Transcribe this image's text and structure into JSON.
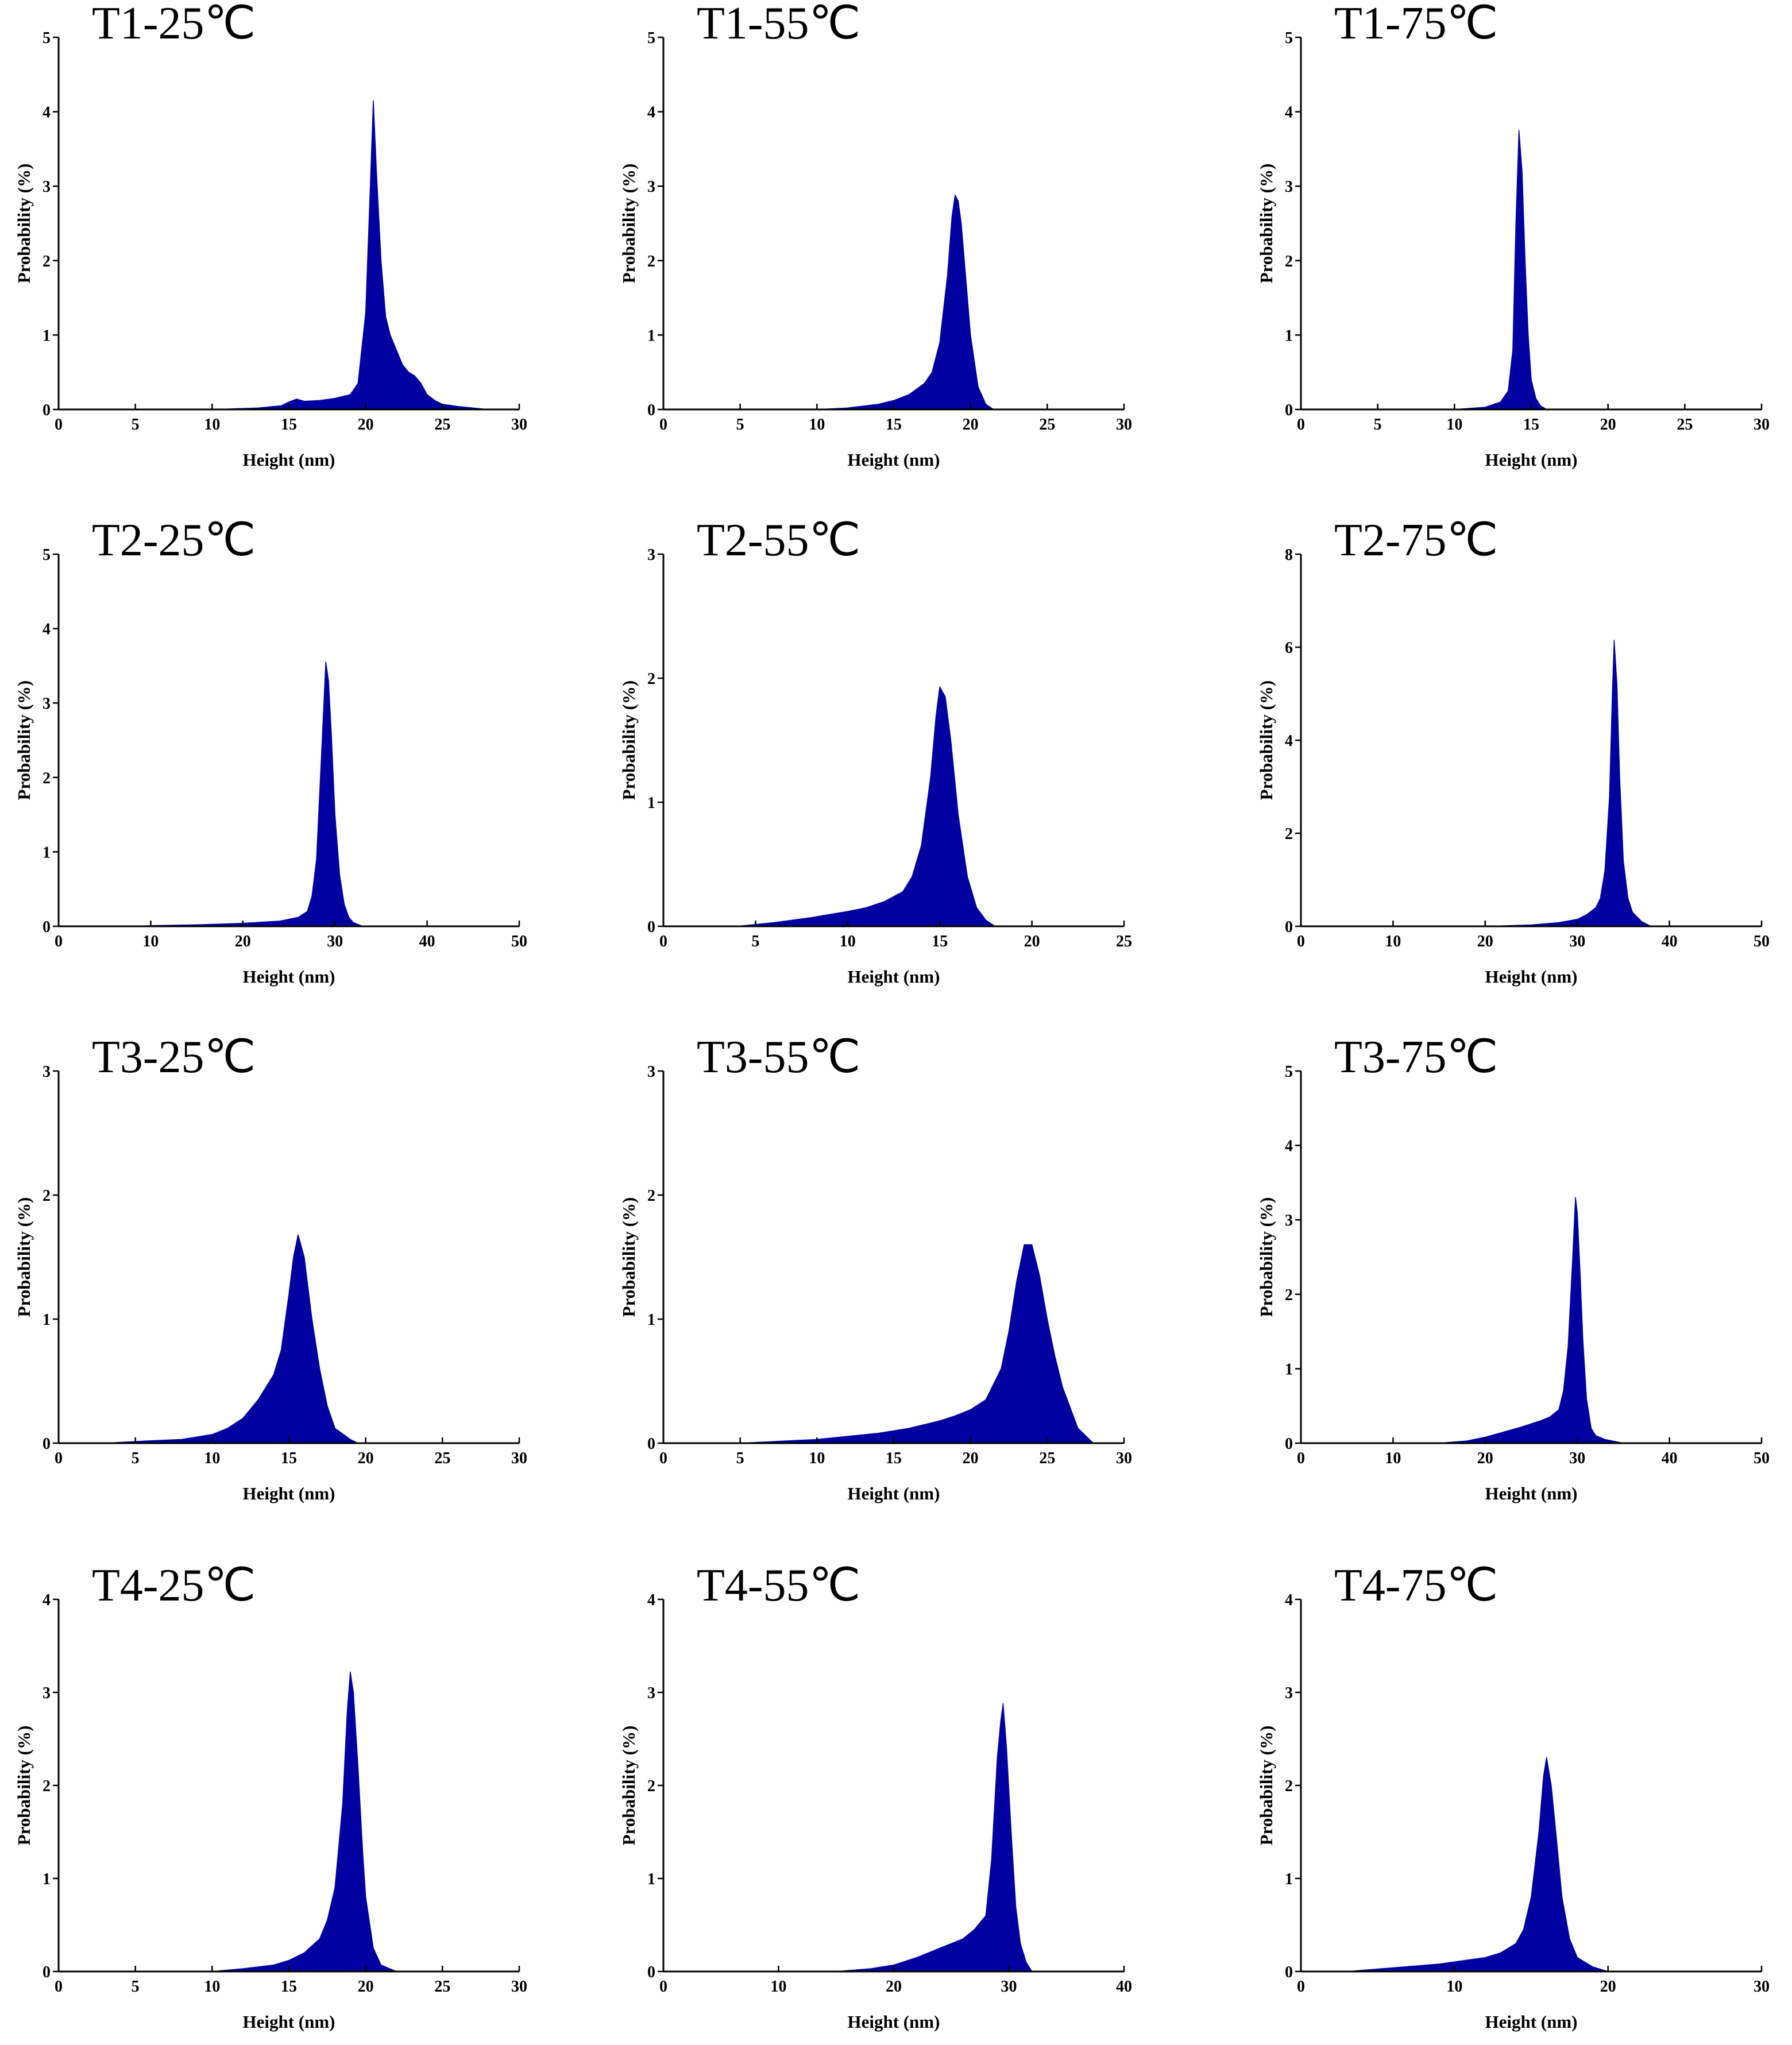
{
  "chart_data": [
    {
      "type": "area",
      "title": "T1-25℃",
      "xlabel": "Height (nm)",
      "ylabel": "Probability (%)",
      "xlim": [
        0,
        30
      ],
      "ylim": [
        0,
        5
      ],
      "xticks": [
        0,
        5,
        10,
        15,
        20,
        25,
        30
      ],
      "yticks": [
        0,
        1,
        2,
        3,
        4,
        5
      ],
      "color": "#0000A0",
      "grid": false,
      "legend": "none",
      "x": [
        0,
        10,
        13,
        14.5,
        15,
        15.5,
        16,
        17,
        18,
        19,
        19.5,
        20,
        20.3,
        20.5,
        20.7,
        21,
        21.3,
        21.6,
        22,
        22.4,
        22.8,
        23.2,
        23.6,
        24,
        24.5,
        25,
        26,
        27,
        28,
        30
      ],
      "y": [
        0,
        0,
        0.02,
        0.05,
        0.1,
        0.14,
        0.11,
        0.12,
        0.15,
        0.2,
        0.35,
        1.3,
        3.0,
        4.15,
        3.2,
        2.0,
        1.25,
        1.0,
        0.8,
        0.6,
        0.5,
        0.45,
        0.35,
        0.2,
        0.12,
        0.07,
        0.04,
        0.02,
        0,
        0
      ]
    },
    {
      "type": "area",
      "title": "T1-55℃",
      "xlabel": "Height (nm)",
      "ylabel": "Probability (%)",
      "xlim": [
        0,
        30
      ],
      "ylim": [
        0,
        5
      ],
      "xticks": [
        0,
        5,
        10,
        15,
        20,
        25,
        30
      ],
      "yticks": [
        0,
        1,
        2,
        3,
        4,
        5
      ],
      "color": "#0000A0",
      "grid": false,
      "legend": "none",
      "x": [
        0,
        10,
        12,
        14,
        15,
        16,
        17,
        17.5,
        18,
        18.5,
        18.8,
        19,
        19.2,
        19.4,
        19.6,
        20,
        20.5,
        21,
        21.5,
        30
      ],
      "y": [
        0,
        0,
        0.02,
        0.07,
        0.12,
        0.2,
        0.35,
        0.5,
        0.9,
        1.8,
        2.6,
        2.88,
        2.8,
        2.5,
        2.0,
        1.0,
        0.3,
        0.07,
        0,
        0
      ]
    },
    {
      "type": "area",
      "title": "T1-75℃",
      "xlabel": "Height (nm)",
      "ylabel": "Probability (%)",
      "xlim": [
        0,
        30
      ],
      "ylim": [
        0,
        5
      ],
      "xticks": [
        0,
        5,
        10,
        15,
        20,
        25,
        30
      ],
      "yticks": [
        0,
        1,
        2,
        3,
        4,
        5
      ],
      "color": "#0000A0",
      "grid": false,
      "legend": "none",
      "x": [
        0,
        10,
        12,
        13,
        13.5,
        13.8,
        14,
        14.2,
        14.4,
        14.6,
        14.8,
        15,
        15.3,
        15.6,
        16,
        30
      ],
      "y": [
        0,
        0,
        0.03,
        0.1,
        0.25,
        0.8,
        2.5,
        3.75,
        3.2,
        2.0,
        1.0,
        0.4,
        0.15,
        0.05,
        0,
        0
      ]
    },
    {
      "type": "area",
      "title": "T2-25℃",
      "xlabel": "Height (nm)",
      "ylabel": "Probability (%)",
      "xlim": [
        0,
        50
      ],
      "ylim": [
        0,
        5
      ],
      "xticks": [
        0,
        10,
        20,
        30,
        40,
        50
      ],
      "yticks": [
        0,
        1,
        2,
        3,
        4,
        5
      ],
      "color": "#0000A0",
      "grid": false,
      "legend": "none",
      "x": [
        0,
        8,
        10,
        15,
        20,
        24,
        26,
        27,
        27.5,
        28,
        28.5,
        29,
        29.3,
        29.6,
        30,
        30.5,
        31,
        31.5,
        32,
        33,
        50
      ],
      "y": [
        0,
        0,
        0.01,
        0.02,
        0.04,
        0.07,
        0.12,
        0.2,
        0.4,
        0.9,
        2.2,
        3.55,
        3.3,
        2.6,
        1.5,
        0.7,
        0.3,
        0.12,
        0.05,
        0,
        0
      ]
    },
    {
      "type": "area",
      "title": "T2-55℃",
      "xlabel": "Height (nm)",
      "ylabel": "Probability (%)",
      "xlim": [
        0,
        25
      ],
      "ylim": [
        0,
        3
      ],
      "xticks": [
        0,
        5,
        10,
        15,
        20,
        25
      ],
      "yticks": [
        0,
        1,
        2,
        3
      ],
      "color": "#0000A0",
      "grid": false,
      "legend": "none",
      "x": [
        0,
        4,
        6,
        8,
        10,
        11,
        12,
        13,
        13.5,
        14,
        14.5,
        14.8,
        15,
        15.3,
        15.6,
        16,
        16.5,
        17,
        17.5,
        18,
        25
      ],
      "y": [
        0,
        0,
        0.03,
        0.07,
        0.12,
        0.15,
        0.2,
        0.28,
        0.4,
        0.65,
        1.2,
        1.7,
        1.93,
        1.85,
        1.5,
        0.9,
        0.4,
        0.15,
        0.05,
        0,
        0
      ]
    },
    {
      "type": "area",
      "title": "T2-75℃",
      "xlabel": "Height (nm)",
      "ylabel": "Probability (%)",
      "xlim": [
        0,
        50
      ],
      "ylim": [
        0,
        8
      ],
      "xticks": [
        0,
        10,
        20,
        30,
        40,
        50
      ],
      "yticks": [
        0,
        2,
        4,
        6,
        8
      ],
      "color": "#0000A0",
      "grid": false,
      "legend": "none",
      "x": [
        0,
        20,
        25,
        28,
        30,
        31,
        32,
        32.5,
        33,
        33.5,
        33.8,
        34,
        34.3,
        34.6,
        35,
        35.5,
        36,
        37,
        38,
        50
      ],
      "y": [
        0,
        0,
        0.03,
        0.08,
        0.15,
        0.25,
        0.4,
        0.6,
        1.2,
        2.8,
        5.0,
        6.15,
        5.2,
        3.2,
        1.4,
        0.6,
        0.3,
        0.1,
        0,
        0
      ]
    },
    {
      "type": "area",
      "title": "T3-25℃",
      "xlabel": "Height (nm)",
      "ylabel": "Probability (%)",
      "xlim": [
        0,
        30
      ],
      "ylim": [
        0,
        3
      ],
      "xticks": [
        0,
        5,
        10,
        15,
        20,
        25,
        30
      ],
      "yticks": [
        0,
        1,
        2,
        3
      ],
      "color": "#0000A0",
      "grid": false,
      "legend": "none",
      "x": [
        0,
        3,
        6,
        8,
        10,
        11,
        12,
        13,
        13.5,
        14,
        14.5,
        15,
        15.3,
        15.6,
        16,
        16.5,
        17,
        17.5,
        18,
        19,
        19.5,
        30
      ],
      "y": [
        0,
        0,
        0.02,
        0.03,
        0.07,
        0.12,
        0.2,
        0.35,
        0.45,
        0.55,
        0.75,
        1.2,
        1.5,
        1.68,
        1.5,
        1.0,
        0.6,
        0.3,
        0.12,
        0.03,
        0,
        0
      ]
    },
    {
      "type": "area",
      "title": "T3-55℃",
      "xlabel": "Height (nm)",
      "ylabel": "Probability (%)",
      "xlim": [
        0,
        30
      ],
      "ylim": [
        0,
        3
      ],
      "xticks": [
        0,
        5,
        10,
        15,
        20,
        25,
        30
      ],
      "yticks": [
        0,
        1,
        2,
        3
      ],
      "color": "#0000A0",
      "grid": false,
      "legend": "none",
      "x": [
        0,
        5,
        10,
        14,
        16,
        18,
        19,
        20,
        21,
        22,
        22.5,
        23,
        23.5,
        24,
        24.5,
        25,
        25.5,
        26,
        27,
        28,
        30
      ],
      "y": [
        0,
        0,
        0.03,
        0.08,
        0.12,
        0.18,
        0.22,
        0.27,
        0.35,
        0.6,
        0.9,
        1.3,
        1.6,
        1.6,
        1.35,
        1.0,
        0.7,
        0.45,
        0.12,
        0,
        0
      ]
    },
    {
      "type": "area",
      "title": "T3-75℃",
      "xlabel": "Height (nm)",
      "ylabel": "Probability (%)",
      "xlim": [
        0,
        50
      ],
      "ylim": [
        0,
        5
      ],
      "xticks": [
        0,
        10,
        20,
        30,
        40,
        50
      ],
      "yticks": [
        0,
        1,
        2,
        3,
        4,
        5
      ],
      "color": "#0000A0",
      "grid": false,
      "legend": "none",
      "x": [
        0,
        15,
        18,
        20,
        22,
        24,
        26,
        27,
        28,
        28.5,
        29,
        29.5,
        29.8,
        30,
        30.3,
        30.6,
        31,
        31.5,
        32,
        33,
        35,
        50
      ],
      "y": [
        0,
        0,
        0.03,
        0.08,
        0.15,
        0.22,
        0.3,
        0.35,
        0.45,
        0.7,
        1.3,
        2.5,
        3.3,
        3.1,
        2.3,
        1.4,
        0.6,
        0.2,
        0.1,
        0.05,
        0,
        0
      ]
    },
    {
      "type": "area",
      "title": "T4-25℃",
      "xlabel": "Height (nm)",
      "ylabel": "Probability (%)",
      "xlim": [
        0,
        30
      ],
      "ylim": [
        0,
        4
      ],
      "xticks": [
        0,
        5,
        10,
        15,
        20,
        25,
        30
      ],
      "yticks": [
        0,
        1,
        2,
        3,
        4
      ],
      "color": "#0000A0",
      "grid": false,
      "legend": "none",
      "x": [
        0,
        10,
        12,
        14,
        15,
        16,
        17,
        17.5,
        18,
        18.5,
        18.8,
        19,
        19.2,
        19.5,
        19.8,
        20,
        20.5,
        21,
        22,
        30
      ],
      "y": [
        0,
        0,
        0.03,
        0.07,
        0.12,
        0.2,
        0.35,
        0.55,
        0.9,
        1.8,
        2.8,
        3.22,
        3.0,
        2.2,
        1.3,
        0.8,
        0.25,
        0.07,
        0,
        0
      ]
    },
    {
      "type": "area",
      "title": "T4-55℃",
      "xlabel": "Height (nm)",
      "ylabel": "Probability (%)",
      "xlim": [
        0,
        40
      ],
      "ylim": [
        0,
        4
      ],
      "xticks": [
        0,
        10,
        20,
        30,
        40
      ],
      "yticks": [
        0,
        1,
        2,
        3,
        4
      ],
      "color": "#0000A0",
      "grid": false,
      "legend": "none",
      "x": [
        0,
        15,
        18,
        20,
        22,
        24,
        26,
        27,
        28,
        28.5,
        29,
        29.3,
        29.5,
        29.8,
        30.2,
        30.6,
        31,
        31.5,
        32,
        40
      ],
      "y": [
        0,
        0,
        0.03,
        0.07,
        0.15,
        0.25,
        0.35,
        0.45,
        0.6,
        1.2,
        2.3,
        2.7,
        2.88,
        2.4,
        1.5,
        0.7,
        0.3,
        0.1,
        0,
        0
      ]
    },
    {
      "type": "area",
      "title": "T4-75℃",
      "xlabel": "Height (nm)",
      "ylabel": "Probability (%)",
      "xlim": [
        0,
        30
      ],
      "ylim": [
        0,
        4
      ],
      "xticks": [
        0,
        10,
        20,
        30
      ],
      "yticks": [
        0,
        1,
        2,
        3,
        4
      ],
      "color": "#0000A0",
      "grid": false,
      "legend": "none",
      "x": [
        0,
        3,
        6,
        9,
        12,
        13,
        14,
        14.5,
        15,
        15.5,
        15.8,
        16,
        16.3,
        16.6,
        17,
        17.5,
        18,
        19,
        20,
        30
      ],
      "y": [
        0,
        0,
        0.04,
        0.08,
        0.15,
        0.2,
        0.3,
        0.45,
        0.8,
        1.5,
        2.1,
        2.3,
        2.0,
        1.5,
        0.8,
        0.35,
        0.15,
        0.05,
        0,
        0
      ]
    }
  ]
}
